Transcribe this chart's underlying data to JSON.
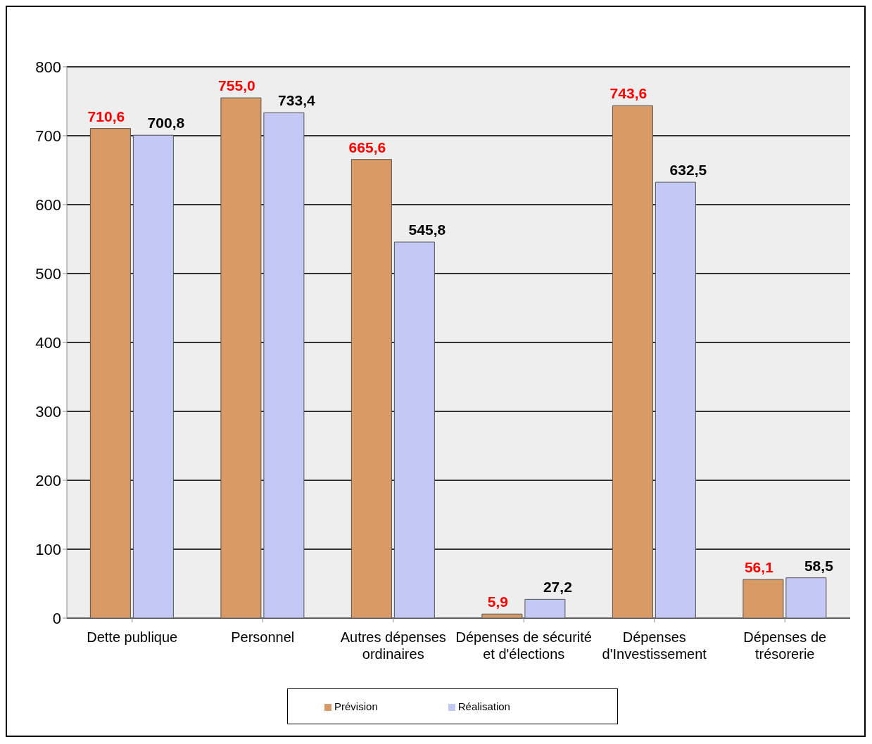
{
  "chart_data": {
    "type": "bar",
    "categories": [
      "Dette publique",
      "Personnel",
      "Autres dépenses ordinaires",
      "Dépenses de sécurité et d'élections",
      "Dépenses d'Investissement",
      "Dépenses de trésorerie"
    ],
    "series": [
      {
        "name": "Prévision",
        "color": "#d99a66",
        "values": [
          710.6,
          755.0,
          665.6,
          5.9,
          743.6,
          56.1
        ],
        "value_labels": [
          "710,6",
          "755,0",
          "665,6",
          "5,9",
          "743,6",
          "56,1"
        ]
      },
      {
        "name": "Réalisation",
        "color": "#c4c8f4",
        "values": [
          700.8,
          733.4,
          545.8,
          27.2,
          632.5,
          58.5
        ],
        "value_labels": [
          "700,8",
          "733,4",
          "545,8",
          "27,2",
          "632,5",
          "58,5"
        ]
      }
    ],
    "ylim": [
      0,
      800
    ],
    "yticks": [
      0,
      100,
      200,
      300,
      400,
      500,
      600,
      700,
      800
    ],
    "grid": "y",
    "legend": "bottom"
  }
}
